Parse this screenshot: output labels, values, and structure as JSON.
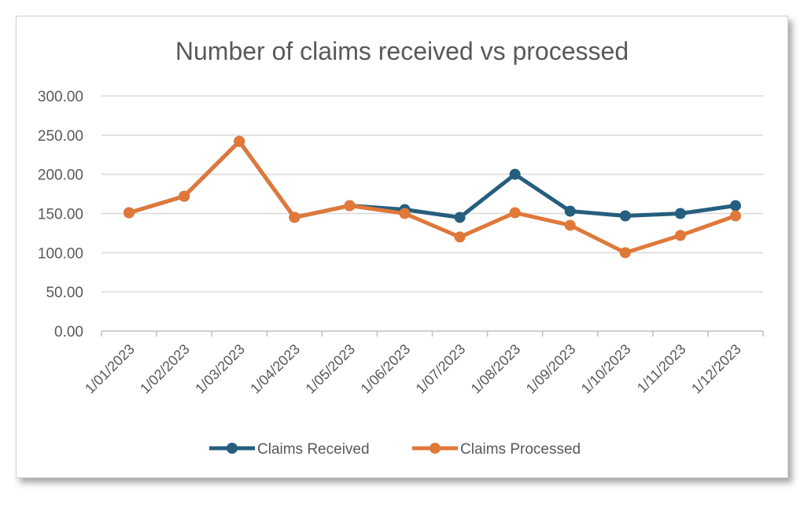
{
  "chart_data": {
    "type": "line",
    "title": "Number of claims received vs processed",
    "categories": [
      "1/01/2023",
      "1/02/2023",
      "1/03/2023",
      "1/04/2023",
      "1/05/2023",
      "1/06/2023",
      "1/07/2023",
      "1/08/2023",
      "1/09/2023",
      "1/10/2023",
      "1/11/2023",
      "1/12/2023"
    ],
    "yticks": [
      "0.00",
      "50.00",
      "100.00",
      "150.00",
      "200.00",
      "250.00",
      "300.00"
    ],
    "ylim": [
      0,
      300
    ],
    "grid": true,
    "legend": "bottom",
    "series": [
      {
        "name": "Claims Received",
        "color": "#255e7e",
        "values": [
          151,
          172,
          242,
          145,
          160,
          155,
          145,
          200,
          153,
          147,
          150,
          160
        ]
      },
      {
        "name": "Claims Processed",
        "color": "#e0783a",
        "values": [
          151,
          172,
          242,
          145,
          160,
          150,
          120,
          151,
          135,
          100,
          122,
          147
        ]
      }
    ]
  }
}
